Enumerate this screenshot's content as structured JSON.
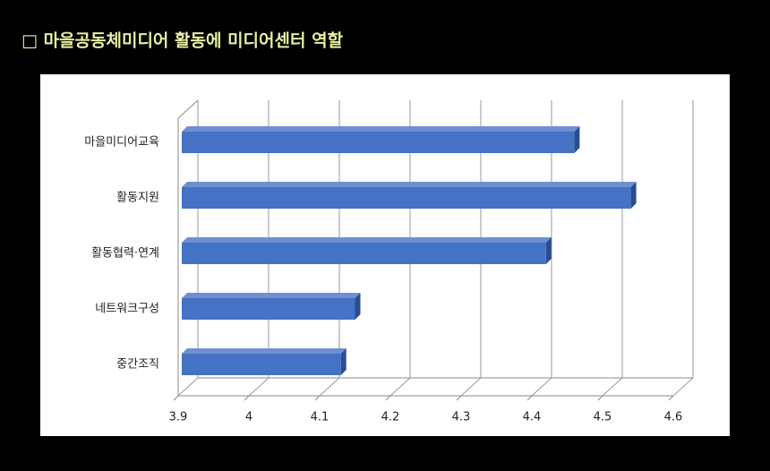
{
  "chart_data": {
    "type": "bar",
    "orientation": "horizontal",
    "title": "□ 마을공동체미디어 활동에 미디어센터 역할",
    "categories": [
      "마을미디어교육",
      "활동지원",
      "활동협력·연계",
      "네트워크구성",
      "중간조직"
    ],
    "values": [
      4.46,
      4.54,
      4.42,
      4.15,
      4.13
    ],
    "color": "#4472c4",
    "xlim": [
      3.9,
      4.6
    ],
    "xticks": [
      3.9,
      4,
      4.1,
      4.2,
      4.3,
      4.4,
      4.5,
      4.6
    ],
    "grid": true
  }
}
